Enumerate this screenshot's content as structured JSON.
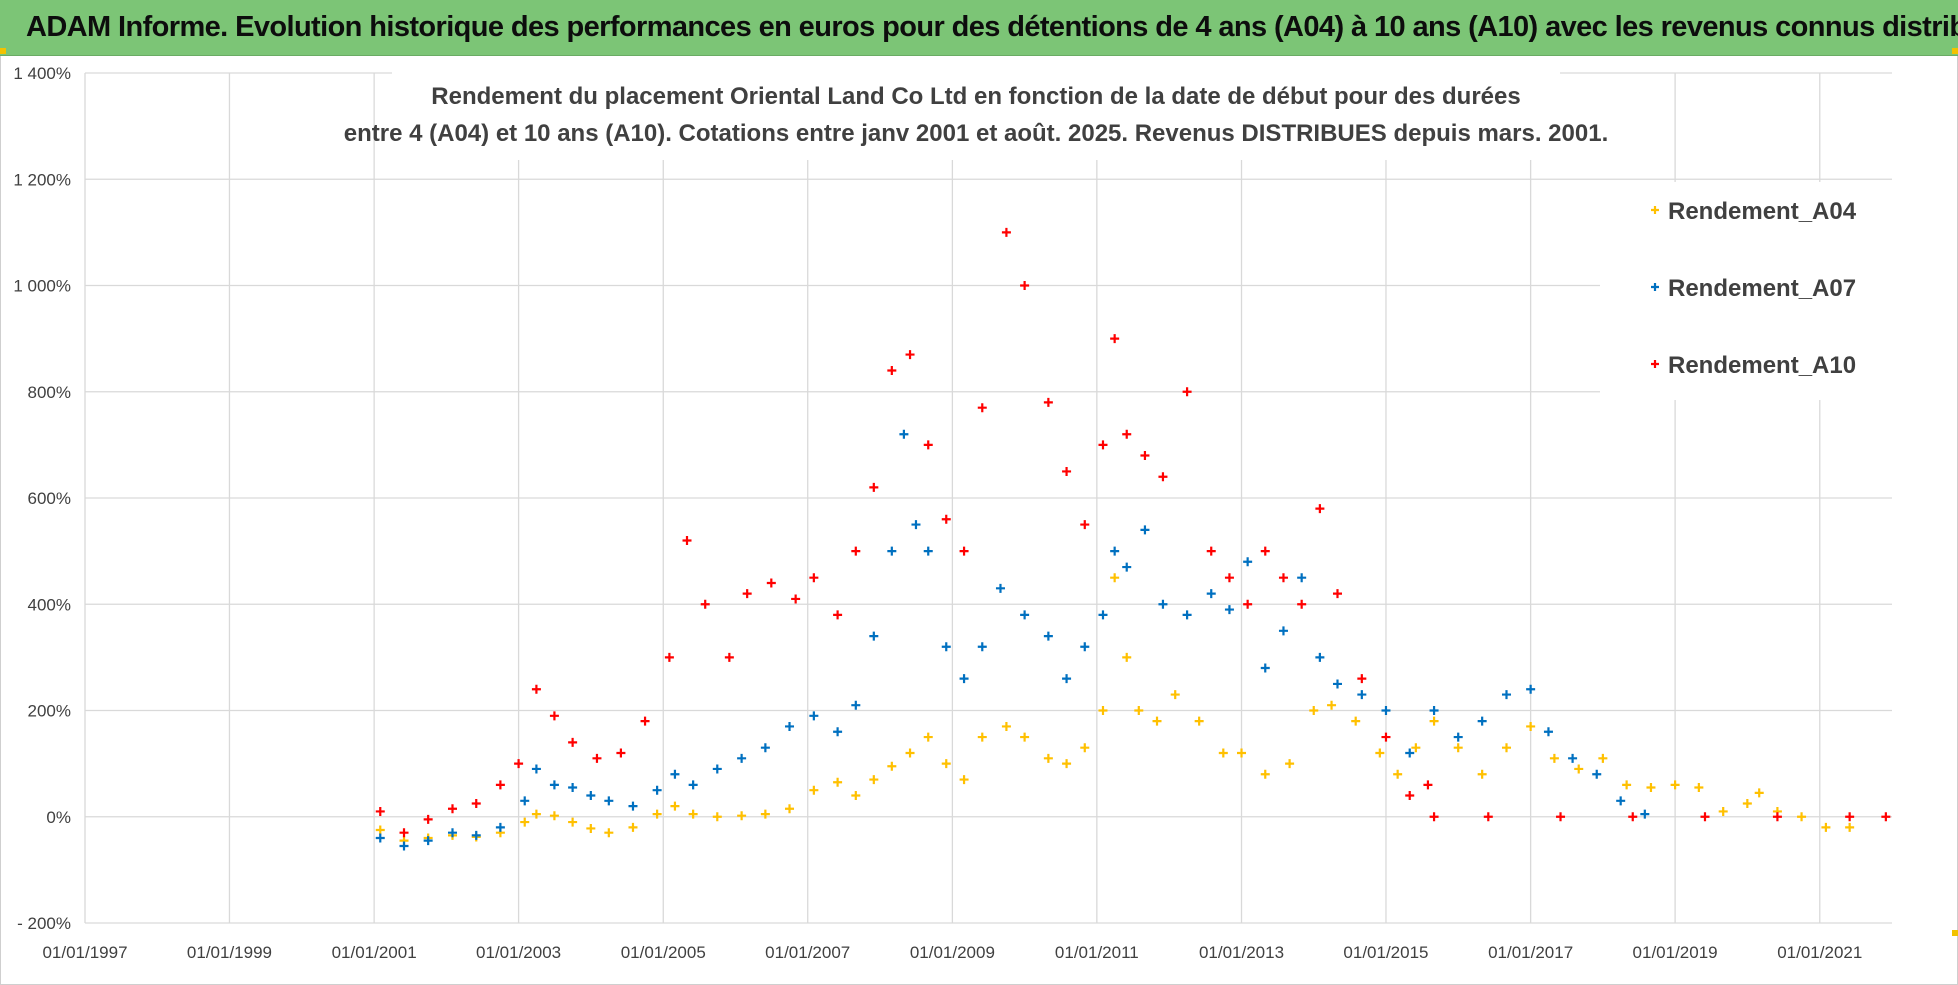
{
  "header": {
    "title": "ADAM Informe. Evolution historique des performances en euros pour des détentions de 4 ans (A04) à 10 ans (A10) avec les revenus connus distribués"
  },
  "colors": {
    "header_bg": "#7cc576",
    "A04": "#ffc000",
    "A07": "#0070c0",
    "A10": "#ff0000",
    "grid": "#d9d9d9",
    "text": "#404040"
  },
  "chart_data": {
    "type": "scatter",
    "title_lines": [
      "Rendement du placement Oriental Land  Co Ltd en fonction de la date de début pour des durées",
      "entre 4 (A04) et 10 ans (A10). Cotations entre janv 2001 et août. 2025. Revenus DISTRIBUES depuis mars. 2001."
    ],
    "xlabel": "",
    "ylabel": "",
    "x_range": [
      "1997-01-01",
      "2022-01-01"
    ],
    "ylim": [
      -200,
      1400
    ],
    "grid": true,
    "legend_position": "top-right",
    "marker": "+",
    "x_ticks": [
      "01/01/1997",
      "01/01/1999",
      "01/01/2001",
      "01/01/2003",
      "01/01/2005",
      "01/01/2007",
      "01/01/2009",
      "01/01/2011",
      "01/01/2013",
      "01/01/2015",
      "01/01/2017",
      "01/01/2019",
      "01/01/2021"
    ],
    "y_ticks": [
      "- 200%",
      "0%",
      "200%",
      "400%",
      "600%",
      "800%",
      "1 000%",
      "1 200%",
      "1 400%"
    ],
    "series": [
      {
        "name": "Rendement_A04",
        "points": [
          [
            "2001-02-01",
            -25
          ],
          [
            "2001-06-01",
            -45
          ],
          [
            "2001-10-01",
            -40
          ],
          [
            "2002-02-01",
            -35
          ],
          [
            "2002-06-01",
            -38
          ],
          [
            "2002-10-01",
            -30
          ],
          [
            "2003-02-01",
            -10
          ],
          [
            "2003-04-01",
            5
          ],
          [
            "2003-07-01",
            2
          ],
          [
            "2003-10-01",
            -10
          ],
          [
            "2004-01-01",
            -22
          ],
          [
            "2004-04-01",
            -30
          ],
          [
            "2004-08-01",
            -20
          ],
          [
            "2004-12-01",
            5
          ],
          [
            "2005-03-01",
            20
          ],
          [
            "2005-06-01",
            5
          ],
          [
            "2005-10-01",
            0
          ],
          [
            "2006-02-01",
            2
          ],
          [
            "2006-06-01",
            5
          ],
          [
            "2006-10-01",
            15
          ],
          [
            "2007-02-01",
            50
          ],
          [
            "2007-06-01",
            65
          ],
          [
            "2007-09-01",
            40
          ],
          [
            "2007-12-01",
            70
          ],
          [
            "2008-03-01",
            95
          ],
          [
            "2008-06-01",
            120
          ],
          [
            "2008-09-01",
            150
          ],
          [
            "2008-12-01",
            100
          ],
          [
            "2009-03-01",
            70
          ],
          [
            "2009-06-01",
            150
          ],
          [
            "2009-10-01",
            170
          ],
          [
            "2010-01-01",
            150
          ],
          [
            "2010-05-01",
            110
          ],
          [
            "2010-08-01",
            100
          ],
          [
            "2010-11-01",
            130
          ],
          [
            "2011-02-01",
            200
          ],
          [
            "2011-04-01",
            450
          ],
          [
            "2011-06-01",
            300
          ],
          [
            "2011-08-01",
            200
          ],
          [
            "2011-11-01",
            180
          ],
          [
            "2012-02-01",
            230
          ],
          [
            "2012-06-01",
            180
          ],
          [
            "2012-10-01",
            120
          ],
          [
            "2013-01-01",
            120
          ],
          [
            "2013-05-01",
            80
          ],
          [
            "2013-09-01",
            100
          ],
          [
            "2014-01-01",
            200
          ],
          [
            "2014-04-01",
            210
          ],
          [
            "2014-08-01",
            180
          ],
          [
            "2014-12-01",
            120
          ],
          [
            "2015-03-01",
            80
          ],
          [
            "2015-06-01",
            130
          ],
          [
            "2015-09-01",
            180
          ],
          [
            "2016-01-01",
            130
          ],
          [
            "2016-05-01",
            80
          ],
          [
            "2016-09-01",
            130
          ],
          [
            "2017-01-01",
            170
          ],
          [
            "2017-05-01",
            110
          ],
          [
            "2017-09-01",
            90
          ],
          [
            "2018-01-01",
            110
          ],
          [
            "2018-05-01",
            60
          ],
          [
            "2018-09-01",
            55
          ],
          [
            "2019-01-01",
            60
          ],
          [
            "2019-05-01",
            55
          ],
          [
            "2019-09-01",
            10
          ],
          [
            "2020-01-01",
            25
          ],
          [
            "2020-03-01",
            45
          ],
          [
            "2020-06-01",
            10
          ],
          [
            "2020-10-01",
            0
          ],
          [
            "2021-02-01",
            -20
          ],
          [
            "2021-06-01",
            -20
          ]
        ]
      },
      {
        "name": "Rendement_A07",
        "points": [
          [
            "2001-02-01",
            -40
          ],
          [
            "2001-06-01",
            -55
          ],
          [
            "2001-10-01",
            -45
          ],
          [
            "2002-02-01",
            -30
          ],
          [
            "2002-06-01",
            -35
          ],
          [
            "2002-10-01",
            -20
          ],
          [
            "2003-02-01",
            30
          ],
          [
            "2003-04-01",
            90
          ],
          [
            "2003-07-01",
            60
          ],
          [
            "2003-10-01",
            55
          ],
          [
            "2004-01-01",
            40
          ],
          [
            "2004-04-01",
            30
          ],
          [
            "2004-08-01",
            20
          ],
          [
            "2004-12-01",
            50
          ],
          [
            "2005-03-01",
            80
          ],
          [
            "2005-06-01",
            60
          ],
          [
            "2005-10-01",
            90
          ],
          [
            "2006-02-01",
            110
          ],
          [
            "2006-06-01",
            130
          ],
          [
            "2006-10-01",
            170
          ],
          [
            "2007-02-01",
            190
          ],
          [
            "2007-06-01",
            160
          ],
          [
            "2007-09-01",
            210
          ],
          [
            "2007-12-01",
            340
          ],
          [
            "2008-03-01",
            500
          ],
          [
            "2008-05-01",
            720
          ],
          [
            "2008-07-01",
            550
          ],
          [
            "2008-09-01",
            500
          ],
          [
            "2008-12-01",
            320
          ],
          [
            "2009-03-01",
            260
          ],
          [
            "2009-06-01",
            320
          ],
          [
            "2009-09-01",
            430
          ],
          [
            "2010-01-01",
            380
          ],
          [
            "2010-05-01",
            340
          ],
          [
            "2010-08-01",
            260
          ],
          [
            "2010-11-01",
            320
          ],
          [
            "2011-02-01",
            380
          ],
          [
            "2011-04-01",
            500
          ],
          [
            "2011-06-01",
            470
          ],
          [
            "2011-09-01",
            540
          ],
          [
            "2011-12-01",
            400
          ],
          [
            "2012-04-01",
            380
          ],
          [
            "2012-08-01",
            420
          ],
          [
            "2012-11-01",
            390
          ],
          [
            "2013-02-01",
            480
          ],
          [
            "2013-05-01",
            280
          ],
          [
            "2013-08-01",
            350
          ],
          [
            "2013-11-01",
            450
          ],
          [
            "2014-02-01",
            300
          ],
          [
            "2014-05-01",
            250
          ],
          [
            "2014-09-01",
            230
          ],
          [
            "2015-01-01",
            200
          ],
          [
            "2015-05-01",
            120
          ],
          [
            "2015-09-01",
            200
          ],
          [
            "2016-01-01",
            150
          ],
          [
            "2016-05-01",
            180
          ],
          [
            "2016-09-01",
            230
          ],
          [
            "2017-01-01",
            240
          ],
          [
            "2017-04-01",
            160
          ],
          [
            "2017-08-01",
            110
          ],
          [
            "2017-12-01",
            80
          ],
          [
            "2018-04-01",
            30
          ],
          [
            "2018-08-01",
            5
          ]
        ]
      },
      {
        "name": "Rendement_A10",
        "points": [
          [
            "2001-02-01",
            10
          ],
          [
            "2001-06-01",
            -30
          ],
          [
            "2001-10-01",
            -5
          ],
          [
            "2002-02-01",
            15
          ],
          [
            "2002-06-01",
            25
          ],
          [
            "2002-10-01",
            60
          ],
          [
            "2003-01-01",
            100
          ],
          [
            "2003-04-01",
            240
          ],
          [
            "2003-07-01",
            190
          ],
          [
            "2003-10-01",
            140
          ],
          [
            "2004-02-01",
            110
          ],
          [
            "2004-06-01",
            120
          ],
          [
            "2004-10-01",
            180
          ],
          [
            "2005-02-01",
            300
          ],
          [
            "2005-05-01",
            520
          ],
          [
            "2005-08-01",
            400
          ],
          [
            "2005-12-01",
            300
          ],
          [
            "2006-03-01",
            420
          ],
          [
            "2006-07-01",
            440
          ],
          [
            "2006-11-01",
            410
          ],
          [
            "2007-02-01",
            450
          ],
          [
            "2007-06-01",
            380
          ],
          [
            "2007-09-01",
            500
          ],
          [
            "2007-12-01",
            620
          ],
          [
            "2008-03-01",
            840
          ],
          [
            "2008-06-01",
            870
          ],
          [
            "2008-09-01",
            700
          ],
          [
            "2008-12-01",
            560
          ],
          [
            "2009-03-01",
            500
          ],
          [
            "2009-06-01",
            770
          ],
          [
            "2009-10-01",
            1100
          ],
          [
            "2010-01-01",
            1000
          ],
          [
            "2010-05-01",
            780
          ],
          [
            "2010-08-01",
            650
          ],
          [
            "2010-11-01",
            550
          ],
          [
            "2011-02-01",
            700
          ],
          [
            "2011-04-01",
            900
          ],
          [
            "2011-06-01",
            720
          ],
          [
            "2011-09-01",
            680
          ],
          [
            "2011-12-01",
            640
          ],
          [
            "2012-04-01",
            800
          ],
          [
            "2012-08-01",
            500
          ],
          [
            "2012-11-01",
            450
          ],
          [
            "2013-02-01",
            400
          ],
          [
            "2013-05-01",
            500
          ],
          [
            "2013-08-01",
            450
          ],
          [
            "2013-11-01",
            400
          ],
          [
            "2014-02-01",
            580
          ],
          [
            "2014-05-01",
            420
          ],
          [
            "2014-09-01",
            260
          ],
          [
            "2015-01-01",
            150
          ],
          [
            "2015-05-01",
            40
          ],
          [
            "2015-08-01",
            60
          ],
          [
            "2015-09-01",
            0
          ],
          [
            "2016-06-01",
            0
          ],
          [
            "2017-06-01",
            0
          ],
          [
            "2018-06-01",
            0
          ],
          [
            "2019-06-01",
            0
          ],
          [
            "2020-06-01",
            0
          ],
          [
            "2021-06-01",
            0
          ],
          [
            "2021-12-01",
            0
          ]
        ]
      }
    ]
  }
}
